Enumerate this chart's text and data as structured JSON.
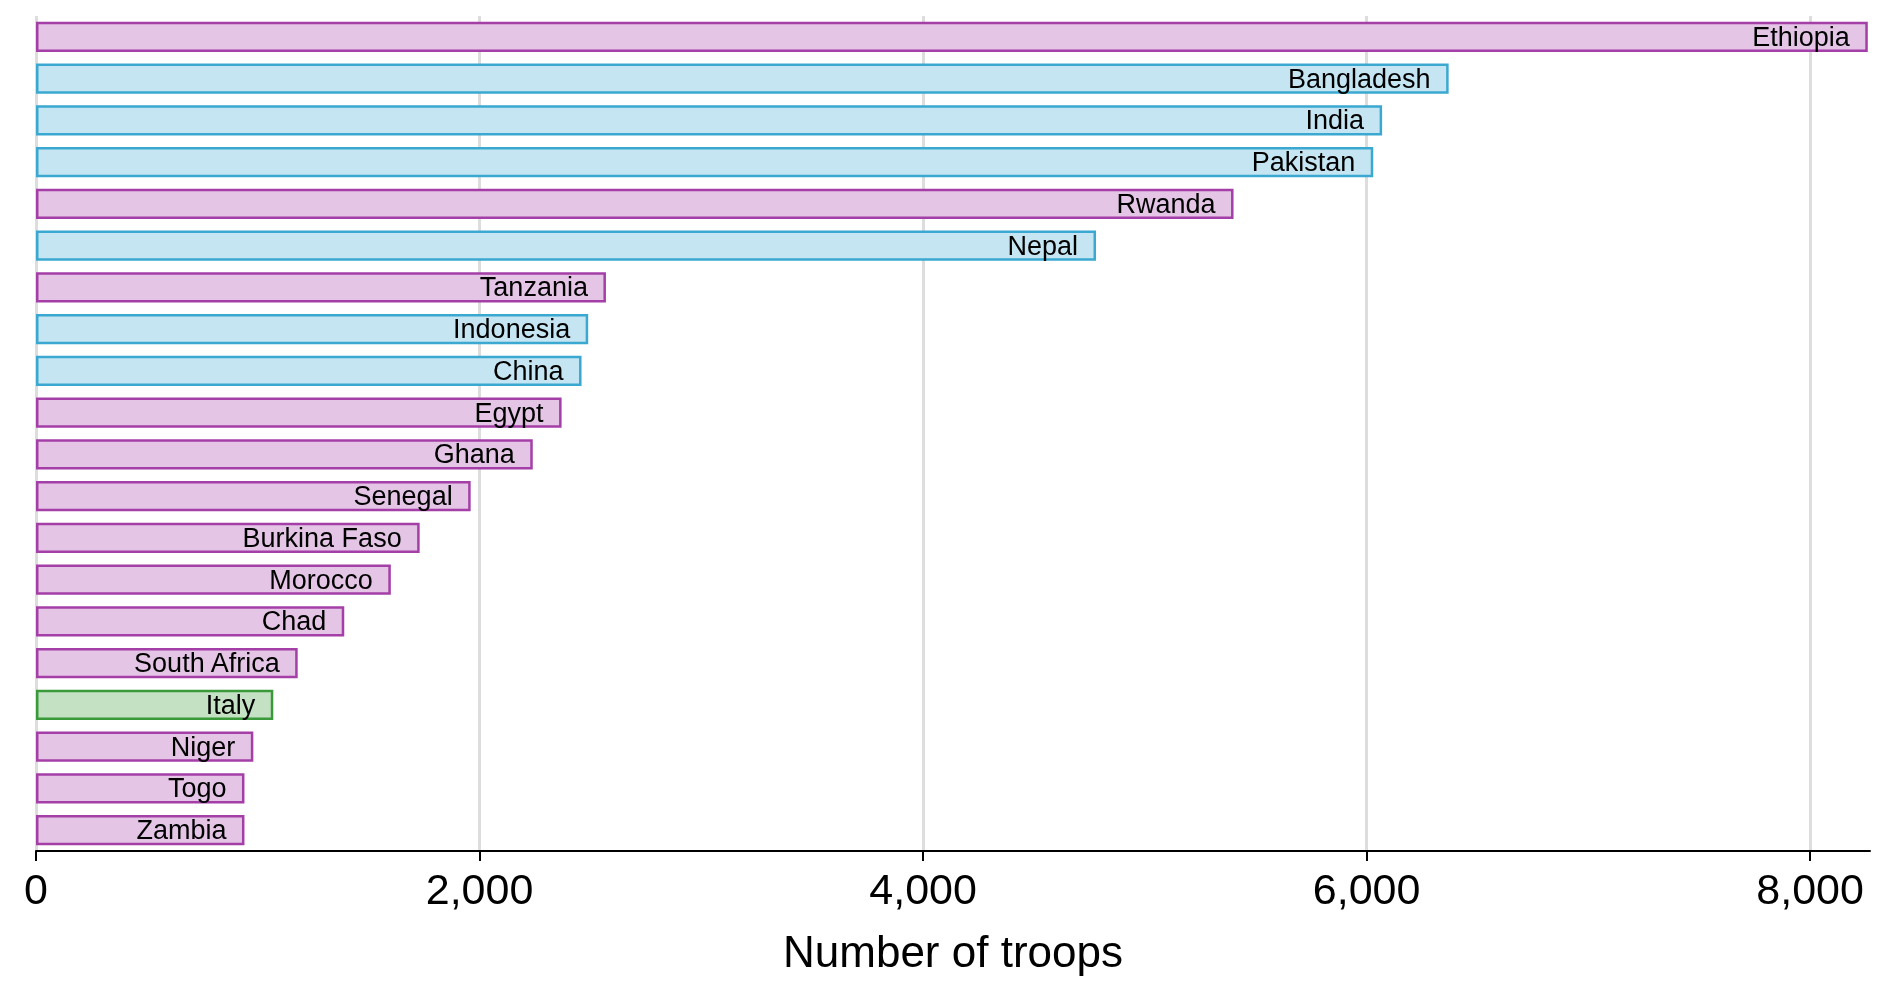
{
  "chart_data": {
    "type": "bar",
    "orientation": "horizontal",
    "xlabel": "Number of troops",
    "categories": [
      "Ethiopia",
      "Bangladesh",
      "India",
      "Pakistan",
      "Rwanda",
      "Nepal",
      "Tanzania",
      "Indonesia",
      "China",
      "Egypt",
      "Ghana",
      "Senegal",
      "Burkina Faso",
      "Morocco",
      "Chad",
      "South Africa",
      "Italy",
      "Niger",
      "Togo",
      "Zambia"
    ],
    "values": [
      8260,
      6370,
      6070,
      6030,
      5400,
      4780,
      2570,
      2490,
      2460,
      2370,
      2240,
      1960,
      1730,
      1600,
      1390,
      1180,
      1070,
      980,
      940,
      940
    ],
    "colors": [
      "#a43fa8",
      "#3aa8d0",
      "#3aa8d0",
      "#3aa8d0",
      "#a43fa8",
      "#3aa8d0",
      "#a43fa8",
      "#3aa8d0",
      "#3aa8d0",
      "#a43fa8",
      "#a43fa8",
      "#a43fa8",
      "#a43fa8",
      "#a43fa8",
      "#a43fa8",
      "#a43fa8",
      "#3a9a3a",
      "#a43fa8",
      "#a43fa8",
      "#a43fa8"
    ],
    "xlim": [
      0,
      8270
    ],
    "xticks": [
      0,
      {
        "value": 2000,
        "label": "2,000"
      },
      {
        "value": 4000,
        "label": "4,000"
      },
      {
        "value": 6000,
        "label": "6,000"
      },
      {
        "value": 8000,
        "label": "8,000"
      }
    ],
    "grid": "x",
    "tick_labels": "x"
  }
}
